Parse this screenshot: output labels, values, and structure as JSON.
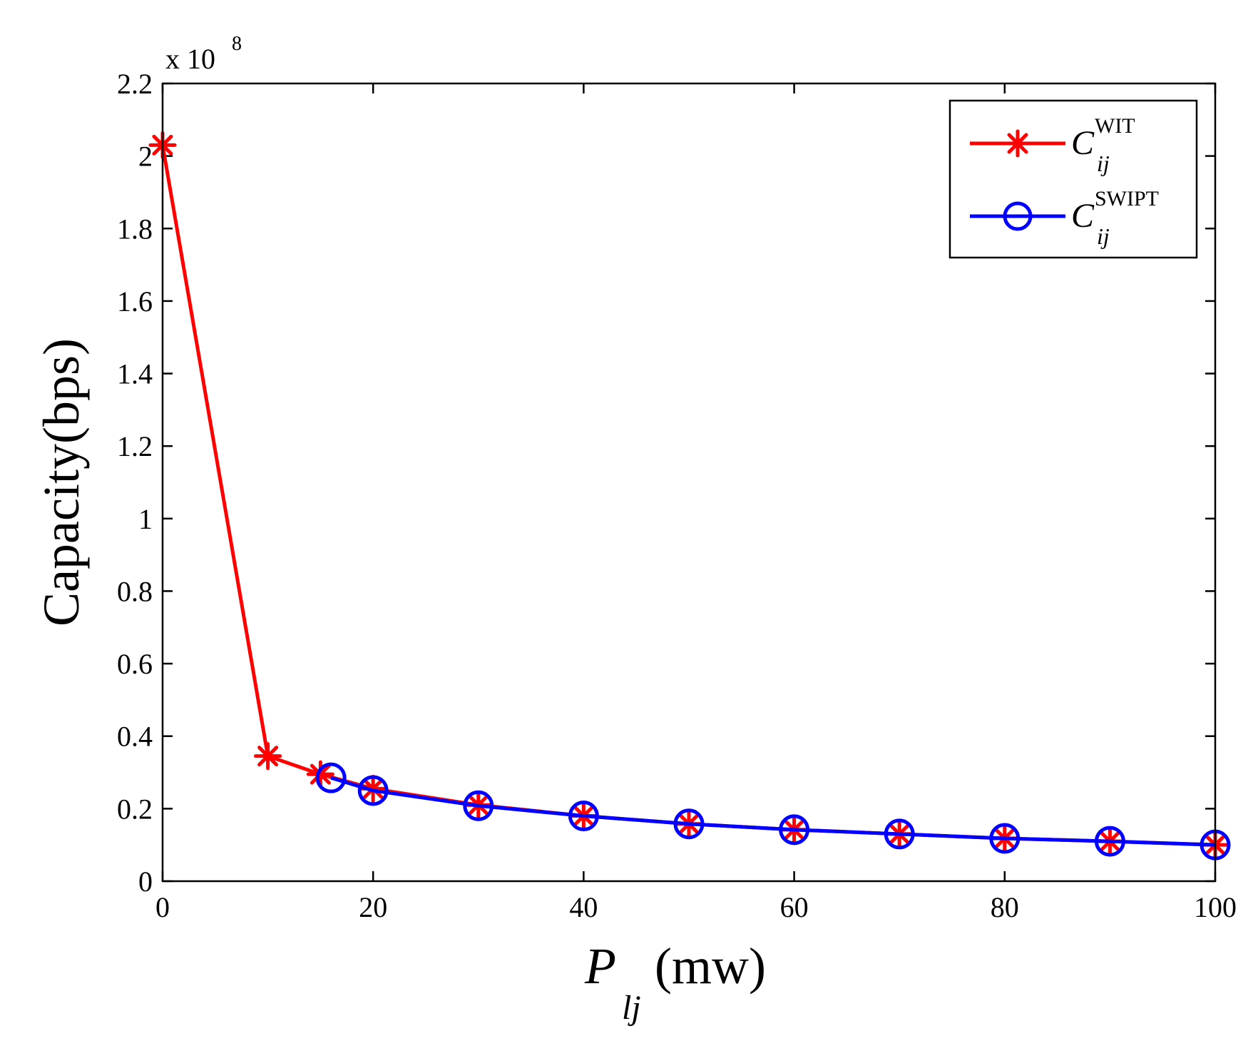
{
  "chart_data": {
    "type": "line",
    "title": "",
    "xlabel": "(mw)",
    "xlabel_symbol": "P",
    "xlabel_subscript": "lj",
    "ylabel": "Capacity(bps)",
    "y_scale_label": "x 10",
    "y_scale_exponent": "8",
    "xlim": [
      0,
      100
    ],
    "ylim": [
      0,
      2.2
    ],
    "xticks": [
      "0",
      "20",
      "40",
      "60",
      "80",
      "100"
    ],
    "yticks": [
      "0",
      "0.2",
      "0.4",
      "0.6",
      "0.8",
      "1",
      "1.2",
      "1.4",
      "1.6",
      "1.8",
      "2",
      "2.2"
    ],
    "grid": false,
    "legend_position": "top-right",
    "series": [
      {
        "name": "C_ij^WIT",
        "legend_symbol": "C",
        "legend_superscript": "WIT",
        "legend_subscript": "ij",
        "color": "#ff0000",
        "marker": "asterisk",
        "x": [
          0,
          10,
          15,
          20,
          30,
          40,
          50,
          60,
          70,
          80,
          90,
          100
        ],
        "y": [
          2.03,
          0.345,
          0.295,
          0.255,
          0.21,
          0.18,
          0.158,
          0.142,
          0.13,
          0.118,
          0.11,
          0.1
        ]
      },
      {
        "name": "C_ij^SWIPT",
        "legend_symbol": "C",
        "legend_superscript": "SWIPT",
        "legend_subscript": "ij",
        "color": "#0000ff",
        "marker": "circle",
        "x": [
          16,
          20,
          30,
          40,
          50,
          60,
          70,
          80,
          90,
          100
        ],
        "y": [
          0.285,
          0.25,
          0.208,
          0.18,
          0.158,
          0.142,
          0.13,
          0.118,
          0.11,
          0.1
        ]
      }
    ]
  }
}
